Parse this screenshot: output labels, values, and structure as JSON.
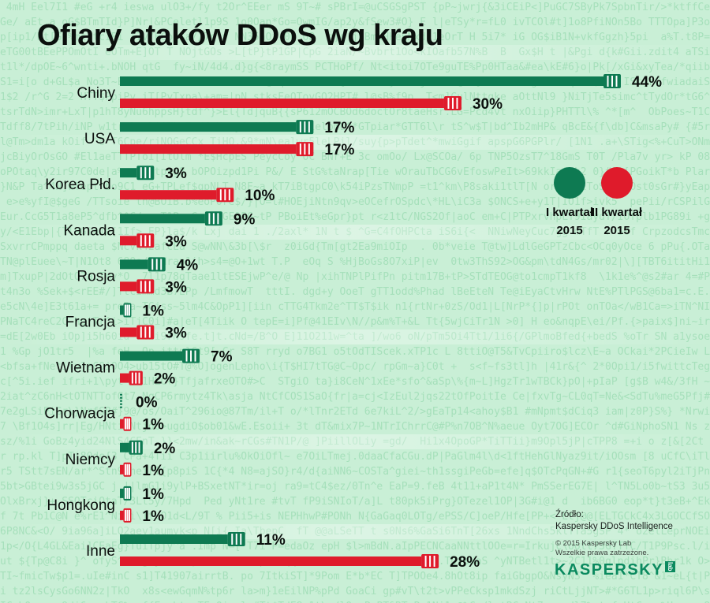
{
  "chart_data": {
    "type": "bar",
    "orientation": "horizontal",
    "title": "Ofiary ataków DDoS wg kraju",
    "categories": [
      "Chiny",
      "USA",
      "Korea Płd.",
      "Kanada",
      "Rosja",
      "Francja",
      "Wietnam",
      "Chorwacja",
      "Niemcy",
      "Hongkong",
      "Inne"
    ],
    "series": [
      {
        "name": "I kwartał 2015",
        "color": "#0e7a52",
        "values": [
          44,
          17,
          3,
          9,
          4,
          1,
          7,
          0,
          2,
          1,
          11
        ],
        "labels": [
          "44%",
          "17%",
          "3%",
          "9%",
          "4%",
          "1%",
          "7%",
          "0%",
          "2%",
          "1%",
          "11%"
        ]
      },
      {
        "name": "II kwartał 2015",
        "color": "#df1b2b",
        "values": [
          30,
          17,
          10,
          3,
          3,
          3,
          2,
          1,
          1,
          1,
          28
        ],
        "labels": [
          "30%",
          "17%",
          "10%",
          "3%",
          "3%",
          "3%",
          "2%",
          "1%",
          "1%",
          "1%",
          "28%"
        ]
      }
    ],
    "xlim": [
      0,
      44
    ],
    "legend": {
      "position": "right",
      "items": [
        {
          "line1": "I kwartał",
          "line2": "2015"
        },
        {
          "line1": "II kwartał",
          "line2": "2015"
        }
      ]
    }
  },
  "source": {
    "label": "Źródło:",
    "name": "Kaspersky DDoS Intelligence",
    "copyright1": "© 2015 Kaspersky Lab",
    "copyright2": "Wszelkie prawa zatrzeżone."
  },
  "logo": {
    "text": "KASPERSKY",
    "suffix": "lab"
  },
  "colors": {
    "q1": "#0e7a52",
    "q2": "#df1b2b",
    "background": "#c9efd6"
  }
}
